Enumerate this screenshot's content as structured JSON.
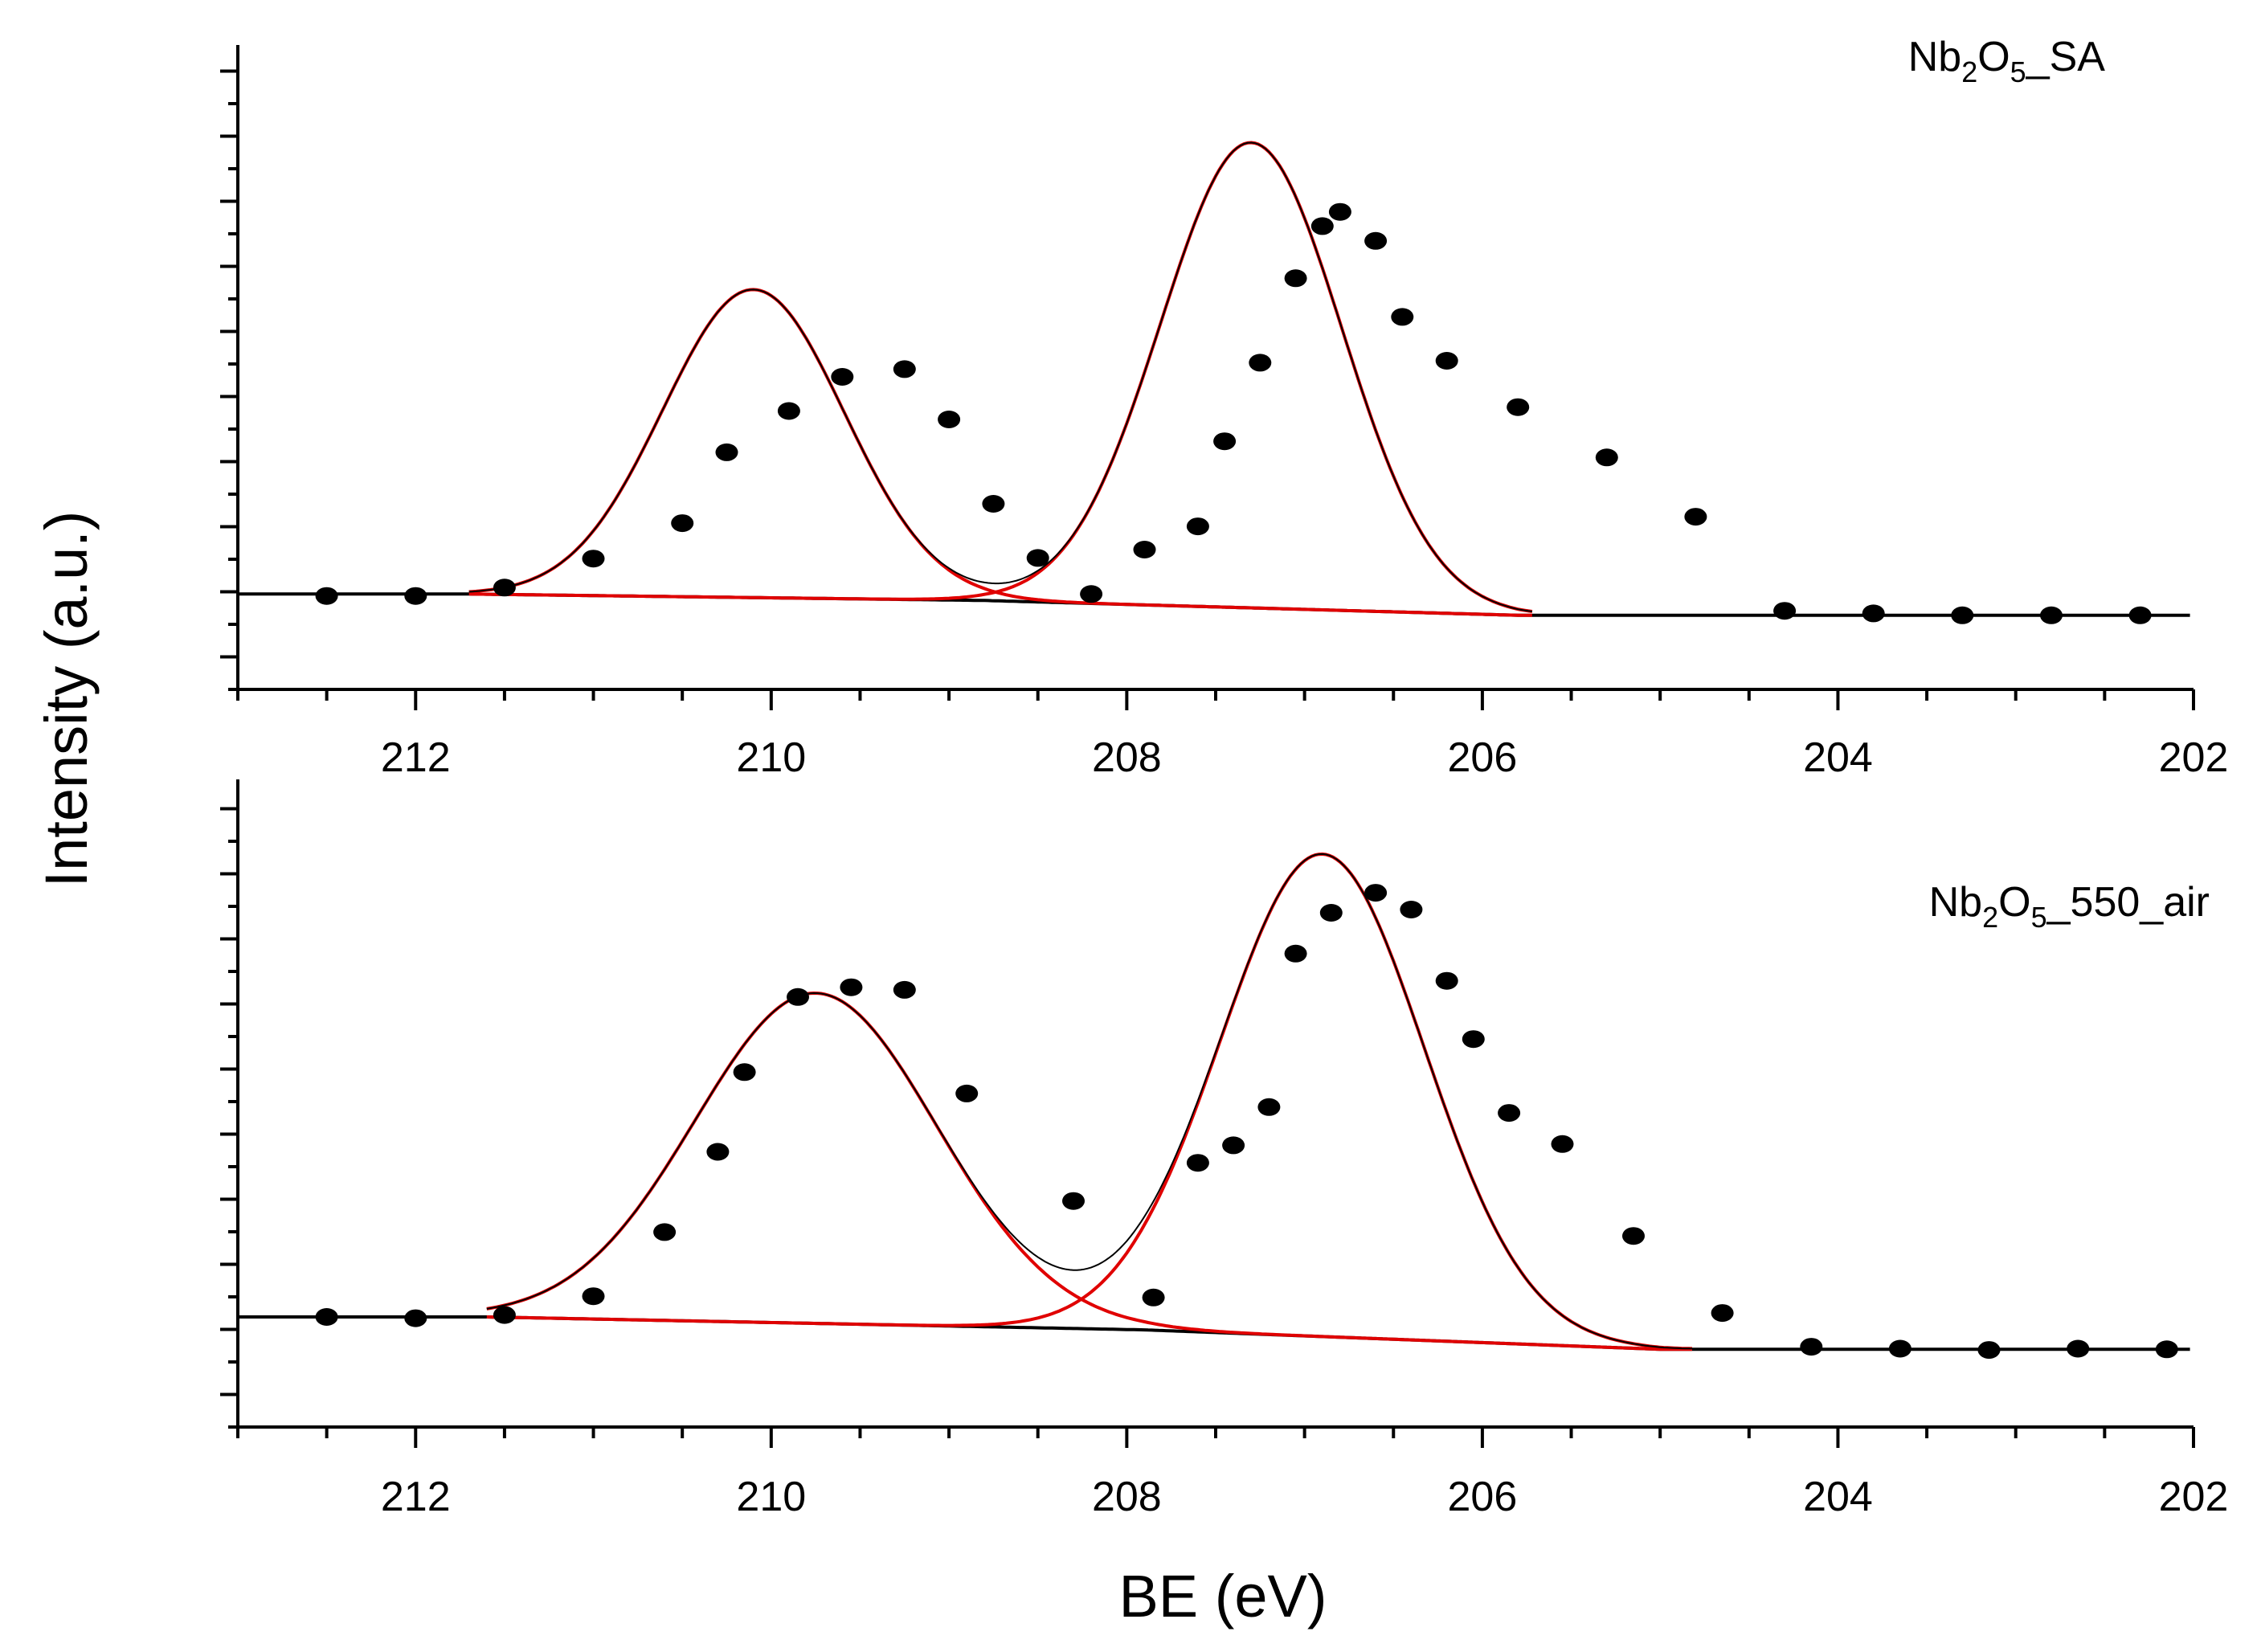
{
  "chart_data": [
    {
      "type": "line",
      "panel": "top",
      "label_parts": [
        "Nb",
        "2",
        "O",
        "5",
        "_SA"
      ],
      "x_range": [
        213,
        202
      ],
      "x_ticks": [
        212,
        210,
        208,
        206,
        204,
        202
      ],
      "x_tick_labels": [
        "212",
        "210",
        "208",
        "206",
        "204",
        "202"
      ],
      "ylim": [
        0,
        1
      ],
      "y_tick_labels_shown": false,
      "background": {
        "x": [
          213,
          211.7,
          208.8,
          205.8,
          202
        ],
        "y": [
          0.148,
          0.148,
          0.138,
          0.115,
          0.115
        ]
      },
      "components": [
        {
          "center": 210.1,
          "height": 0.478,
          "fwhm": 1.2
        },
        {
          "center": 207.3,
          "height": 0.722,
          "fwhm": 1.2
        }
      ],
      "fit_range": [
        211.7,
        205.7
      ],
      "series": [
        {
          "name": "data",
          "x": [
            212.5,
            212.0,
            211.5,
            211.0,
            210.5,
            210.25,
            209.9,
            209.6,
            209.25,
            209.0,
            208.75,
            208.5,
            208.2,
            207.9,
            207.6,
            207.45,
            207.25,
            207.05,
            206.9,
            206.8,
            206.6,
            206.45,
            206.2,
            205.8,
            205.3,
            204.8,
            204.3,
            203.8,
            203.3,
            202.8,
            202.3
          ],
          "y": [
            0.145,
            0.145,
            0.158,
            0.203,
            0.258,
            0.368,
            0.432,
            0.485,
            0.497,
            0.419,
            0.288,
            0.204,
            0.148,
            0.217,
            0.253,
            0.385,
            0.507,
            0.638,
            0.719,
            0.741,
            0.696,
            0.578,
            0.51,
            0.438,
            0.36,
            0.268,
            0.122,
            0.118,
            0.115,
            0.115,
            0.115
          ]
        }
      ]
    },
    {
      "type": "line",
      "panel": "bottom",
      "label_parts": [
        "Nb",
        "2",
        "O",
        "5",
        "_550_air"
      ],
      "x_range": [
        213,
        202
      ],
      "x_ticks": [
        212,
        210,
        208,
        206,
        204,
        202
      ],
      "x_tick_labels": [
        "212",
        "210",
        "208",
        "206",
        "204",
        "202"
      ],
      "ylim": [
        0,
        1
      ],
      "y_tick_labels_shown": false,
      "background": {
        "x": [
          213,
          211.6,
          207.9,
          205.0,
          202
        ],
        "y": [
          0.17,
          0.17,
          0.15,
          0.12,
          0.12
        ]
      },
      "components": [
        {
          "center": 209.75,
          "height": 0.51,
          "fwhm": 1.6
        },
        {
          "center": 206.9,
          "height": 0.745,
          "fwhm": 1.35
        }
      ],
      "fit_range": [
        211.6,
        204.8
      ],
      "series": [
        {
          "name": "data",
          "x": [
            212.5,
            212.0,
            211.5,
            211.0,
            210.6,
            210.3,
            210.15,
            209.85,
            209.55,
            209.25,
            208.9,
            208.3,
            207.85,
            207.6,
            207.4,
            207.2,
            207.05,
            206.85,
            206.6,
            206.4,
            206.2,
            206.05,
            205.85,
            205.55,
            205.15,
            204.65,
            204.15,
            203.65,
            203.15,
            202.65,
            202.15
          ],
          "y": [
            0.17,
            0.168,
            0.173,
            0.202,
            0.301,
            0.425,
            0.548,
            0.664,
            0.679,
            0.675,
            0.515,
            0.349,
            0.2,
            0.408,
            0.435,
            0.494,
            0.731,
            0.794,
            0.825,
            0.799,
            0.689,
            0.599,
            0.485,
            0.437,
            0.295,
            0.176,
            0.124,
            0.121,
            0.119,
            0.121,
            0.12
          ]
        }
      ]
    }
  ],
  "axes": {
    "xlabel": "BE (eV)",
    "ylabel": "Intensity (a.u.)"
  },
  "colors": {
    "axis": "#000000",
    "data_points": "#000000",
    "envelope": "#000000",
    "component": "#e00000",
    "background": "#000000"
  }
}
